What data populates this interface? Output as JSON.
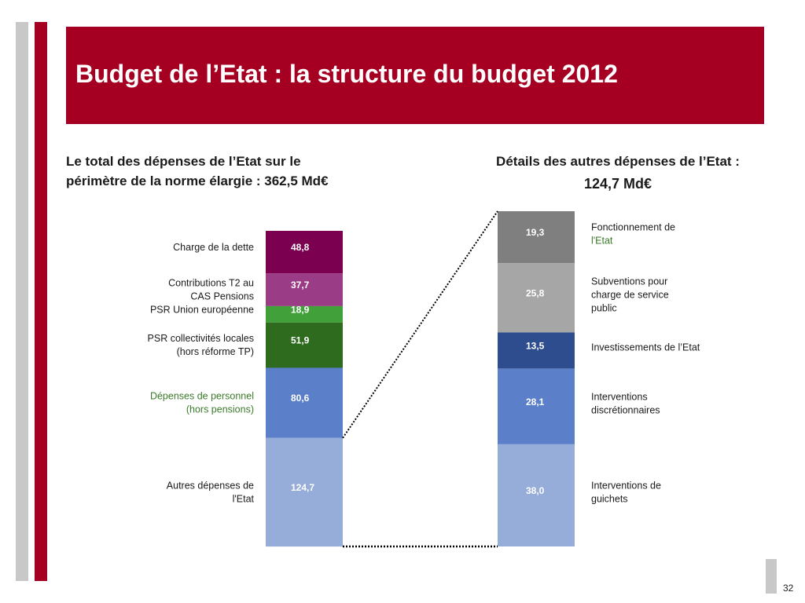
{
  "header": {
    "title": "Budget de l’Etat : la structure du budget 2012"
  },
  "left_panel": {
    "title_line1": "Le total des dépenses de l’Etat sur le",
    "title_line2": "périmètre de la norme élargie : 362,5 Md€"
  },
  "right_panel": {
    "title_line1": "Détails des autres dépenses de l’Etat :",
    "title_line2": "124,7 Md€"
  },
  "page_number": "32",
  "chart_data": [
    {
      "type": "bar",
      "stacked": true,
      "unit": "Md€",
      "total": 362.5,
      "segments_top_to_bottom": [
        {
          "label_lines": [
            "Charge de la dette"
          ],
          "value": 48.8,
          "value_label": "48,8",
          "color": "#7b0050",
          "label_color": "#1a1a1a"
        },
        {
          "label_lines": [
            "Contributions T2 au",
            "CAS Pensions"
          ],
          "value": 37.7,
          "value_label": "37,7",
          "color": "#9b3c86",
          "label_color": "#1a1a1a"
        },
        {
          "label_lines": [
            "PSR Union européenne"
          ],
          "value": 18.9,
          "value_label": "18,9",
          "color": "#41a03a",
          "label_color": "#1a1a1a"
        },
        {
          "label_lines": [
            "PSR collectivités locales",
            "(hors réforme TP)"
          ],
          "value": 51.9,
          "value_label": "51,9",
          "color": "#2e6b1f",
          "label_color": "#1a1a1a"
        },
        {
          "label_lines": [
            "Dépenses de personnel",
            "(hors pensions)"
          ],
          "value": 80.6,
          "value_label": "80,6",
          "color": "#5b7fc8",
          "label_color": "#3b7a2a"
        },
        {
          "label_lines": [
            "Autres dépenses de",
            "l'Etat"
          ],
          "value": 124.7,
          "value_label": "124,7",
          "color": "#96add9",
          "label_color": "#1a1a1a"
        }
      ]
    },
    {
      "type": "bar",
      "stacked": true,
      "unit": "Md€",
      "total": 124.7,
      "segments_top_to_bottom": [
        {
          "label_lines": [
            "Fonctionnement de",
            "l'Etat"
          ],
          "value": 19.3,
          "value_label": "19,3",
          "color": "#7f7f7f",
          "label_color": "#1a1a1a",
          "second_line_color": "#3b7a2a"
        },
        {
          "label_lines": [
            "Subventions pour",
            "charge de service",
            "public"
          ],
          "value": 25.8,
          "value_label": "25,8",
          "color": "#a6a6a6",
          "label_color": "#1a1a1a"
        },
        {
          "label_lines": [
            "Investissements de l’Etat"
          ],
          "value": 13.5,
          "value_label": "13,5",
          "color": "#2e4d8f",
          "label_color": "#1a1a1a"
        },
        {
          "label_lines": [
            "Interventions",
            "discrétionnaires"
          ],
          "value": 28.1,
          "value_label": "28,1",
          "color": "#5b7fc8",
          "label_color": "#1a1a1a"
        },
        {
          "label_lines": [
            "Interventions de",
            "guichets"
          ],
          "value": 38.0,
          "value_label": "38,0",
          "color": "#96add9",
          "label_color": "#1a1a1a"
        }
      ]
    }
  ]
}
